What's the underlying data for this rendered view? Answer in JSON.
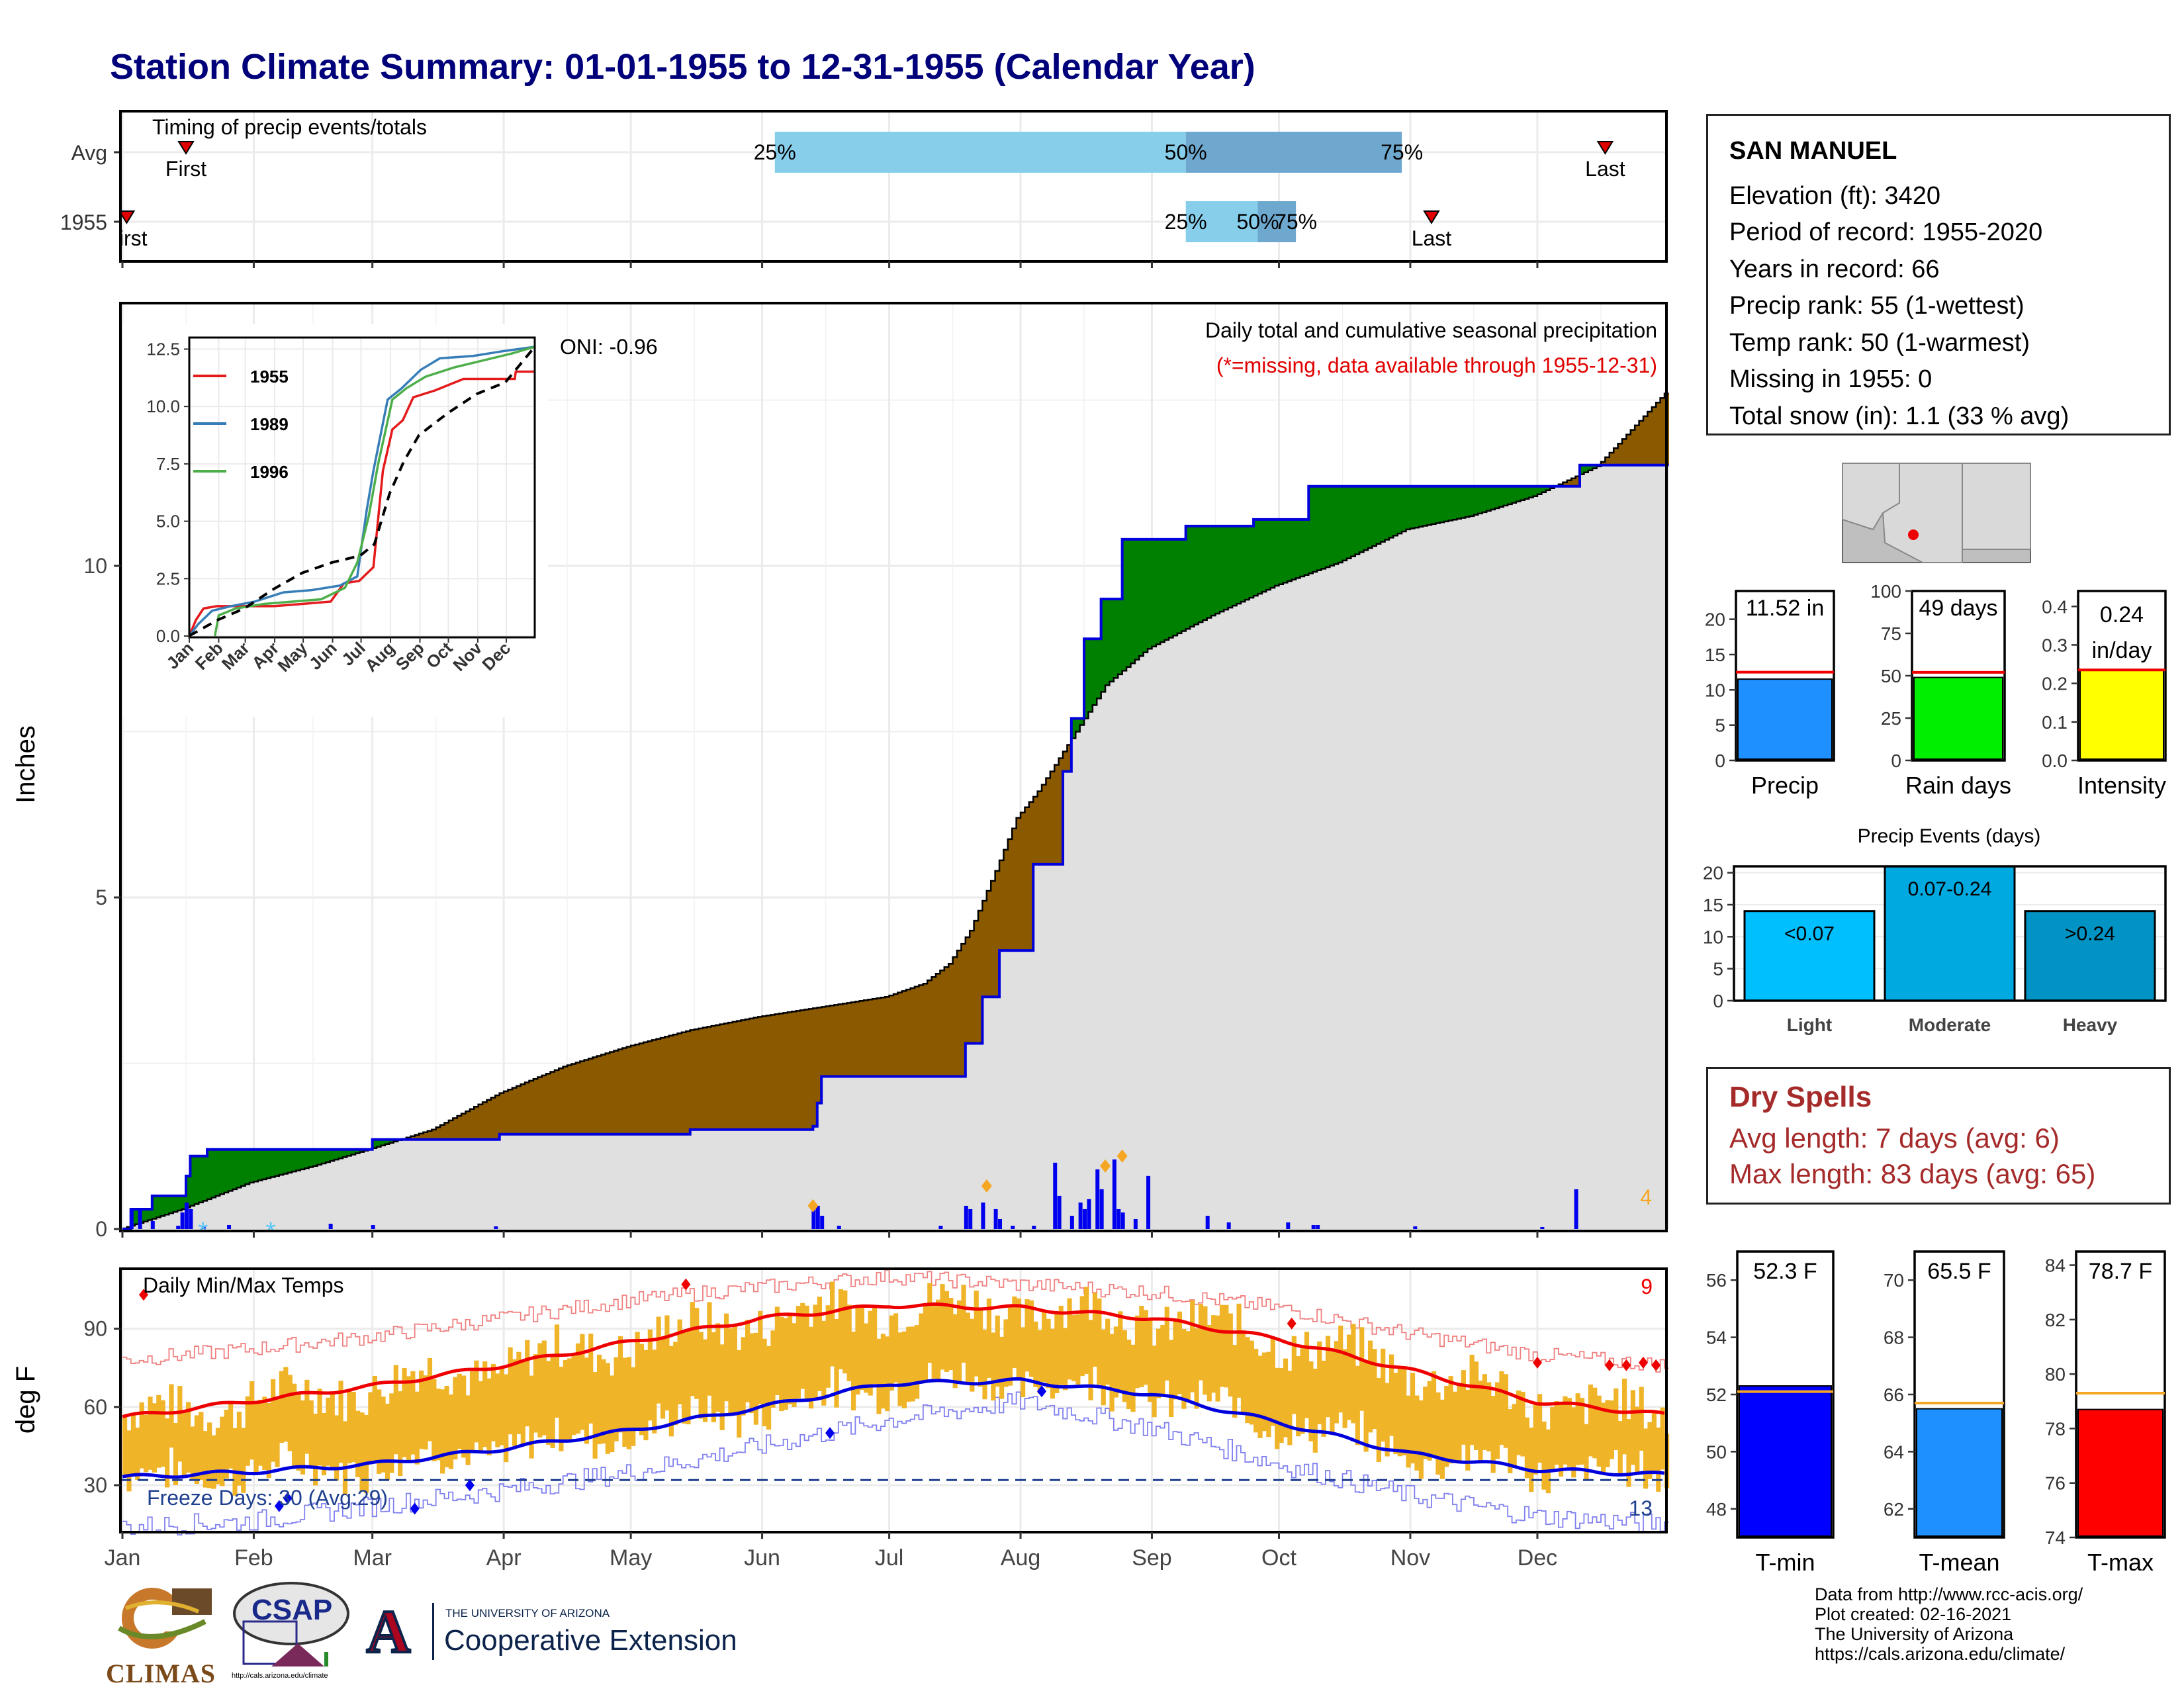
{
  "title": "Station Climate Summary: 01-01-1955 to 12-31-1955 (Calendar Year)",
  "colors": {
    "title": "#00007a",
    "brown": "#8b5a00",
    "green": "#008000",
    "gray": "#e0e0e0",
    "blue": "#0000ee",
    "orange": "#f0b429",
    "red": "#ee0000",
    "lightblue": "#87ceeb",
    "midblue": "#6fa8cf",
    "drygray": "#a52a2a"
  },
  "months": [
    "Jan",
    "Feb",
    "Mar",
    "Apr",
    "May",
    "Jun",
    "Jul",
    "Aug",
    "Sep",
    "Oct",
    "Nov",
    "Dec"
  ],
  "timing": {
    "title": "Timing of precip events/totals",
    "rows": [
      "Avg",
      "1955"
    ],
    "avg": {
      "first": 16,
      "p25": 155,
      "p50": 252,
      "p75": 303,
      "last": 351,
      "first_label": "First",
      "last_label": "Last",
      "p25_label": "25%",
      "p50_label": "50%",
      "p75_label": "75%"
    },
    "year": {
      "first": 2,
      "p25": 252,
      "p50": 269,
      "p75": 278,
      "last": 310,
      "first_label": "First",
      "last_label": "Last",
      "p25_label": "25%",
      "p50_label": "50%",
      "p75_label": "75%"
    }
  },
  "chart_data": [
    {
      "type": "area",
      "name": "main-precip",
      "ylabel": "Inches",
      "ylim": [
        0,
        12.5
      ],
      "yticks": [
        0,
        5,
        10
      ],
      "subtitle": "Daily total and cumulative seasonal precipitation",
      "note": "(*=missing, data available through 1955-12-31)",
      "oni": "ONI: -0.96",
      "event_count": "4",
      "avg_cumulative": [
        [
          1,
          0.01
        ],
        [
          15,
          0.3
        ],
        [
          31,
          0.7
        ],
        [
          46,
          0.95
        ],
        [
          59,
          1.2
        ],
        [
          74,
          1.5
        ],
        [
          90,
          2.05
        ],
        [
          105,
          2.45
        ],
        [
          120,
          2.75
        ],
        [
          135,
          3.0
        ],
        [
          151,
          3.2
        ],
        [
          166,
          3.35
        ],
        [
          181,
          3.5
        ],
        [
          190,
          3.7
        ],
        [
          196,
          4.0
        ],
        [
          201,
          4.5
        ],
        [
          207,
          5.4
        ],
        [
          212,
          6.2
        ],
        [
          217,
          6.6
        ],
        [
          222,
          7.1
        ],
        [
          227,
          7.6
        ],
        [
          233,
          8.2
        ],
        [
          243,
          8.75
        ],
        [
          258,
          9.25
        ],
        [
          273,
          9.7
        ],
        [
          288,
          10.05
        ],
        [
          304,
          10.55
        ],
        [
          319,
          10.75
        ],
        [
          334,
          11.05
        ],
        [
          349,
          11.5
        ],
        [
          365,
          12.6
        ]
      ],
      "year_cumulative": [
        [
          1,
          0.0
        ],
        [
          3,
          0.3
        ],
        [
          8,
          0.5
        ],
        [
          16,
          0.8
        ],
        [
          17,
          1.1
        ],
        [
          21,
          1.2
        ],
        [
          38,
          1.2
        ],
        [
          50,
          1.2
        ],
        [
          60,
          1.35
        ],
        [
          90,
          1.43
        ],
        [
          135,
          1.5
        ],
        [
          164,
          1.55
        ],
        [
          165,
          1.9
        ],
        [
          166,
          2.3
        ],
        [
          194,
          2.3
        ],
        [
          200,
          2.8
        ],
        [
          204,
          3.5
        ],
        [
          208,
          4.2
        ],
        [
          216,
          5.5
        ],
        [
          223,
          6.9
        ],
        [
          225,
          7.7
        ],
        [
          228,
          8.9
        ],
        [
          232,
          9.5
        ],
        [
          237,
          10.4
        ],
        [
          252,
          10.6
        ],
        [
          268,
          10.7
        ],
        [
          281,
          11.2
        ],
        [
          344,
          11.2
        ],
        [
          345,
          11.52
        ],
        [
          365,
          11.52
        ]
      ],
      "daily": [
        [
          3,
          0.3
        ],
        [
          5,
          0.3
        ],
        [
          8,
          0.12
        ],
        [
          14,
          0.05
        ],
        [
          15,
          0.25
        ],
        [
          16,
          0.4
        ],
        [
          17,
          0.3
        ],
        [
          20,
          0.05
        ],
        [
          26,
          0.06
        ],
        [
          50,
          0.08
        ],
        [
          60,
          0.06
        ],
        [
          89,
          0.04
        ],
        [
          164,
          0.3
        ],
        [
          165,
          0.35
        ],
        [
          166,
          0.2
        ],
        [
          170,
          0.05
        ],
        [
          194,
          0.05
        ],
        [
          200,
          0.35
        ],
        [
          201,
          0.3
        ],
        [
          204,
          0.4
        ],
        [
          207,
          0.3
        ],
        [
          208,
          0.15
        ],
        [
          211,
          0.05
        ],
        [
          216,
          0.05
        ],
        [
          221,
          1.0
        ],
        [
          222,
          0.5
        ],
        [
          225,
          0.2
        ],
        [
          227,
          0.4
        ],
        [
          228,
          0.3
        ],
        [
          229,
          0.45
        ],
        [
          231,
          0.9
        ],
        [
          232,
          0.6
        ],
        [
          235,
          1.05
        ],
        [
          236,
          0.3
        ],
        [
          237,
          0.25
        ],
        [
          240,
          0.15
        ],
        [
          243,
          0.8
        ],
        [
          257,
          0.2
        ],
        [
          262,
          0.1
        ],
        [
          276,
          0.1
        ],
        [
          282,
          0.06
        ],
        [
          283,
          0.06
        ],
        [
          306,
          0.04
        ],
        [
          336,
          0.03
        ],
        [
          344,
          0.6
        ]
      ],
      "heavy_markers": [
        [
          164,
          0.35
        ],
        [
          205,
          0.65
        ],
        [
          233,
          0.95
        ],
        [
          237,
          1.1
        ]
      ],
      "snow_markers": [
        [
          20,
          0.05
        ],
        [
          36,
          0.05
        ]
      ]
    },
    {
      "type": "line",
      "name": "inset-comparison",
      "ylim": [
        0,
        12.5
      ],
      "yticks": [
        0.0,
        2.5,
        5.0,
        7.5,
        10.0,
        12.5
      ],
      "series": [
        {
          "name": "1955",
          "color": "#e41a1c",
          "points": [
            [
              1,
              0
            ],
            [
              8,
              0.7
            ],
            [
              16,
              1.2
            ],
            [
              30,
              1.3
            ],
            [
              60,
              1.3
            ],
            [
              90,
              1.3
            ],
            [
              120,
              1.4
            ],
            [
              150,
              1.5
            ],
            [
              164,
              2.3
            ],
            [
              180,
              2.4
            ],
            [
              195,
              3.0
            ],
            [
              205,
              7.2
            ],
            [
              215,
              9.0
            ],
            [
              226,
              9.4
            ],
            [
              237,
              10.4
            ],
            [
              260,
              10.7
            ],
            [
              290,
              11.2
            ],
            [
              344,
              11.2
            ],
            [
              345,
              11.52
            ],
            [
              365,
              11.52
            ]
          ]
        },
        {
          "name": "1989",
          "color": "#377eb8",
          "points": [
            [
              1,
              0
            ],
            [
              10,
              0.5
            ],
            [
              25,
              1.1
            ],
            [
              45,
              1.3
            ],
            [
              70,
              1.5
            ],
            [
              100,
              1.9
            ],
            [
              130,
              2.0
            ],
            [
              160,
              2.2
            ],
            [
              178,
              2.6
            ],
            [
              188,
              5.5
            ],
            [
              195,
              7.2
            ],
            [
              210,
              10.3
            ],
            [
              225,
              10.8
            ],
            [
              245,
              11.6
            ],
            [
              265,
              12.1
            ],
            [
              300,
              12.2
            ],
            [
              330,
              12.4
            ],
            [
              365,
              12.6
            ]
          ]
        },
        {
          "name": "1996",
          "color": "#4daf4a",
          "points": [
            [
              28,
              0
            ],
            [
              32,
              0.9
            ],
            [
              50,
              1.2
            ],
            [
              80,
              1.4
            ],
            [
              110,
              1.5
            ],
            [
              140,
              1.6
            ],
            [
              165,
              2.1
            ],
            [
              178,
              3.2
            ],
            [
              190,
              5.2
            ],
            [
              200,
              7.5
            ],
            [
              215,
              10.3
            ],
            [
              230,
              10.8
            ],
            [
              250,
              11.3
            ],
            [
              280,
              11.7
            ],
            [
              310,
              12.0
            ],
            [
              340,
              12.3
            ],
            [
              365,
              12.6
            ]
          ]
        },
        {
          "name": "",
          "color": "#000000",
          "dashed": true,
          "points": [
            [
              1,
              0.01
            ],
            [
              31,
              0.7
            ],
            [
              59,
              1.2
            ],
            [
              90,
              2.05
            ],
            [
              120,
              2.75
            ],
            [
              151,
              3.2
            ],
            [
              181,
              3.5
            ],
            [
              196,
              4.0
            ],
            [
              212,
              6.2
            ],
            [
              227,
              7.6
            ],
            [
              243,
              8.75
            ],
            [
              273,
              9.7
            ],
            [
              304,
              10.55
            ],
            [
              334,
              11.05
            ],
            [
              365,
              12.6
            ]
          ]
        }
      ]
    },
    {
      "type": "bar",
      "name": "precip-total",
      "xlabel": "Precip",
      "value_label": "11.52 in",
      "value": 11.52,
      "avg": 12.5,
      "ylim": [
        0,
        24
      ],
      "yticks": [
        0,
        5,
        10,
        15,
        20
      ],
      "color": "#1e90ff"
    },
    {
      "type": "bar",
      "name": "rain-days",
      "xlabel": "Rain days",
      "value_label": "49 days",
      "value": 49,
      "avg": 52,
      "ylim": [
        0,
        100
      ],
      "yticks": [
        0,
        25,
        50,
        75,
        100
      ],
      "color": "#00ee00"
    },
    {
      "type": "bar",
      "name": "intensity",
      "xlabel": "Intensity",
      "value_label": "0.24",
      "value_label2": "in/day",
      "value": 0.235,
      "avg": 0.235,
      "ylim": [
        0,
        0.44
      ],
      "yticks": [
        "0.0",
        "0.1",
        "0.2",
        "0.3",
        "0.4"
      ],
      "color": "#ffff00"
    },
    {
      "type": "bar",
      "name": "precip-events",
      "title": "Precip Events (days)",
      "categories": [
        "Light",
        "Moderate",
        "Heavy"
      ],
      "bar_labels": [
        "<0.07",
        "0.07-0.24",
        ">0.24"
      ],
      "values": [
        14,
        21,
        14
      ],
      "ylim": [
        0,
        21
      ],
      "yticks": [
        0,
        5,
        10,
        15,
        20
      ],
      "colors": [
        "#00bfff",
        "#00a9e0",
        "#0093c4"
      ]
    },
    {
      "type": "line",
      "name": "daily-temps",
      "ylabel": "deg F",
      "title": "Daily Min/Max Temps",
      "ylim": [
        12,
        113
      ],
      "yticks": [
        30,
        60,
        90
      ],
      "freeze_line": 32,
      "freeze_label": "Freeze Days: 30 (Avg:29)",
      "hot_count": "9",
      "cold_count": "13",
      "avg_max": [
        [
          1,
          56
        ],
        [
          30,
          62
        ],
        [
          60,
          68
        ],
        [
          91,
          76
        ],
        [
          121,
          85
        ],
        [
          152,
          94
        ],
        [
          182,
          99
        ],
        [
          213,
          98
        ],
        [
          244,
          94
        ],
        [
          274,
          86
        ],
        [
          305,
          74
        ],
        [
          335,
          62
        ],
        [
          365,
          57
        ]
      ],
      "avg_min": [
        [
          1,
          33
        ],
        [
          30,
          35
        ],
        [
          60,
          38
        ],
        [
          91,
          44
        ],
        [
          121,
          51
        ],
        [
          152,
          60
        ],
        [
          182,
          69
        ],
        [
          213,
          70
        ],
        [
          244,
          65
        ],
        [
          274,
          54
        ],
        [
          305,
          42
        ],
        [
          335,
          36
        ],
        [
          365,
          34
        ]
      ],
      "rec_max": [
        [
          1,
          78
        ],
        [
          30,
          82
        ],
        [
          60,
          87
        ],
        [
          91,
          94
        ],
        [
          121,
          101
        ],
        [
          152,
          106
        ],
        [
          182,
          110
        ],
        [
          213,
          107
        ],
        [
          244,
          104
        ],
        [
          274,
          98
        ],
        [
          305,
          88
        ],
        [
          335,
          80
        ],
        [
          365,
          76
        ]
      ],
      "rec_min": [
        [
          1,
          14
        ],
        [
          30,
          16
        ],
        [
          60,
          22
        ],
        [
          91,
          28
        ],
        [
          121,
          35
        ],
        [
          152,
          45
        ],
        [
          182,
          55
        ],
        [
          213,
          62
        ],
        [
          244,
          52
        ],
        [
          274,
          38
        ],
        [
          305,
          26
        ],
        [
          335,
          18
        ],
        [
          365,
          15
        ]
      ]
    },
    {
      "type": "bar",
      "name": "t-min",
      "xlabel": "T-min",
      "value_label": "52.3 F",
      "value": 52.3,
      "avg": 52.1,
      "ylim": [
        47,
        57
      ],
      "yticks": [
        48,
        50,
        52,
        54,
        56
      ],
      "color": "#0000ff"
    },
    {
      "type": "bar",
      "name": "t-mean",
      "xlabel": "T-mean",
      "value_label": "65.5 F",
      "value": 65.5,
      "avg": 65.7,
      "ylim": [
        61,
        71
      ],
      "yticks": [
        62,
        64,
        66,
        68,
        70
      ],
      "color": "#1e90ff"
    },
    {
      "type": "bar",
      "name": "t-max",
      "xlabel": "T-max",
      "value_label": "78.7 F",
      "value": 78.7,
      "avg": 79.3,
      "ylim": [
        74,
        84.5
      ],
      "yticks": [
        74,
        76,
        78,
        80,
        82,
        84
      ],
      "color": "#ff0000"
    }
  ],
  "station": {
    "name": "SAN MANUEL",
    "lines": [
      "Elevation (ft): 3420",
      "Period of record: 1955-2020",
      "Years in record: 66",
      "Precip rank: 55 (1-wettest)",
      "Temp rank: 50 (1-warmest)",
      "Missing in 1955: 0",
      "Total snow (in): 1.1 (33 % avg)"
    ]
  },
  "dry_spells": {
    "title": "Dry Spells",
    "avg": "Avg length: 7 days (avg: 6)",
    "max": "Max length: 83 days (avg: 65)"
  },
  "credits": [
    "Data from http://www.rcc-acis.org/",
    "Plot created: 02-16-2021",
    "The University of Arizona",
    "https://cals.arizona.edu/climate/"
  ],
  "logos": {
    "climas": "CLIMAS",
    "csap": "CSAP",
    "csap_url": "http://cals.arizona.edu/climate",
    "ua_small": "THE UNIVERSITY OF ARIZONA",
    "ua_large": "Cooperative Extension",
    "ua_mark": "A"
  }
}
